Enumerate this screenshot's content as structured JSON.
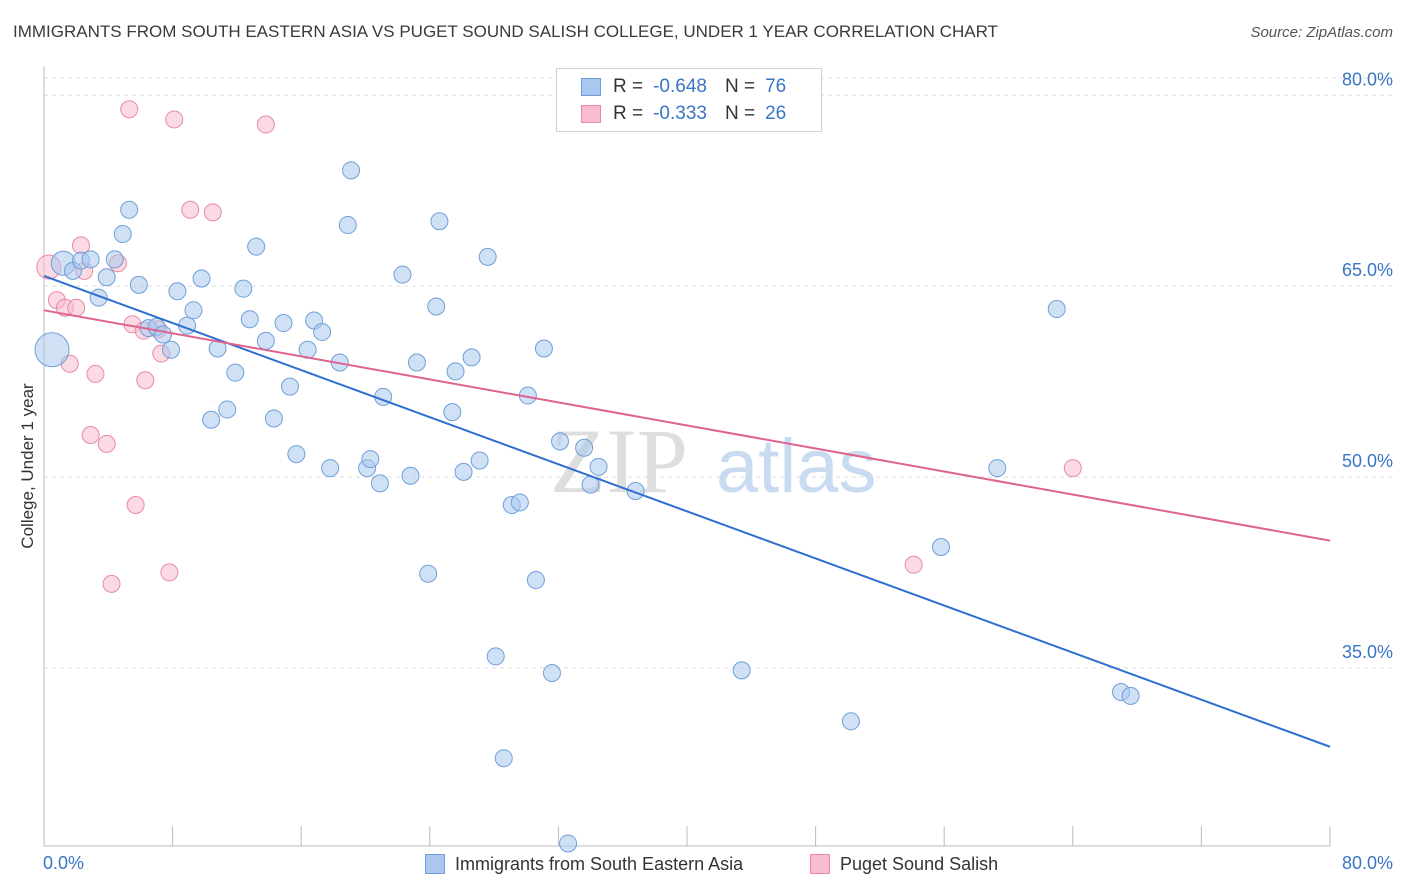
{
  "title": "IMMIGRANTS FROM SOUTH EASTERN ASIA VS PUGET SOUND SALISH COLLEGE, UNDER 1 YEAR CORRELATION CHART",
  "source": "Source: ZipAtlas.com",
  "watermark": {
    "zip": "ZIP",
    "atlas": "atlas"
  },
  "legend": {
    "series1": {
      "r_label": "R =",
      "r_value": "-0.648",
      "n_label": "N =",
      "n_value": "76"
    },
    "series2": {
      "r_label": "R =",
      "r_value": "-0.333",
      "n_label": "N =",
      "n_value": "26"
    }
  },
  "bottom_legend": {
    "series1": "Immigrants from South Eastern Asia",
    "series2": "Puget Sound Salish"
  },
  "colors": {
    "blue_fill": "#aac8ef",
    "blue_stroke": "#6f9fd8",
    "blue_line": "#2e6fd0",
    "pink_fill": "#f7bccd",
    "pink_stroke": "#e88aa7",
    "pink_line": "#e0638e",
    "axis_text": "#3a75c4",
    "grid": "#dddddd"
  },
  "chart_data": {
    "type": "scatter",
    "title": "IMMIGRANTS FROM SOUTH EASTERN ASIA VS PUGET SOUND SALISH COLLEGE, UNDER 1 YEAR CORRELATION CHART",
    "xlabel": "",
    "ylabel": "College, Under 1 year",
    "xlim": [
      0,
      80
    ],
    "ylim": [
      21.0,
      82.3
    ],
    "x_tick_labels": [
      {
        "value": 0,
        "label": "0.0%"
      },
      {
        "value": 80,
        "label": "80.0%"
      }
    ],
    "y_tick_labels": [
      {
        "value": 80,
        "label": "80.0%"
      },
      {
        "value": 65,
        "label": "65.0%"
      },
      {
        "value": 50,
        "label": "50.0%"
      },
      {
        "value": 35,
        "label": "35.0%"
      }
    ],
    "grid": true,
    "legend_position": "top-center",
    "series": [
      {
        "name": "Immigrants from South Eastern Asia",
        "r": -0.648,
        "n": 76,
        "trend": {
          "x": [
            0,
            80
          ],
          "y": [
            65.8,
            28.8
          ]
        },
        "points": [
          {
            "x": 0.5,
            "y": 60.0,
            "s": 3
          },
          {
            "x": 1.2,
            "y": 66.8,
            "s": 2
          },
          {
            "x": 1.8,
            "y": 66.2
          },
          {
            "x": 2.3,
            "y": 67.0
          },
          {
            "x": 2.9,
            "y": 67.1
          },
          {
            "x": 3.4,
            "y": 64.1
          },
          {
            "x": 3.9,
            "y": 65.7
          },
          {
            "x": 4.4,
            "y": 67.1
          },
          {
            "x": 4.9,
            "y": 69.1
          },
          {
            "x": 5.3,
            "y": 71.0
          },
          {
            "x": 5.9,
            "y": 65.1
          },
          {
            "x": 6.5,
            "y": 61.7
          },
          {
            "x": 7.0,
            "y": 61.8
          },
          {
            "x": 7.4,
            "y": 61.2
          },
          {
            "x": 7.9,
            "y": 60.0
          },
          {
            "x": 8.3,
            "y": 64.6
          },
          {
            "x": 8.9,
            "y": 61.9
          },
          {
            "x": 9.3,
            "y": 63.1
          },
          {
            "x": 9.8,
            "y": 65.6
          },
          {
            "x": 10.4,
            "y": 54.5
          },
          {
            "x": 10.8,
            "y": 60.1
          },
          {
            "x": 11.4,
            "y": 55.3
          },
          {
            "x": 11.9,
            "y": 58.2
          },
          {
            "x": 12.4,
            "y": 64.8
          },
          {
            "x": 12.8,
            "y": 62.4
          },
          {
            "x": 13.2,
            "y": 68.1
          },
          {
            "x": 13.8,
            "y": 60.7
          },
          {
            "x": 14.3,
            "y": 54.6
          },
          {
            "x": 14.9,
            "y": 62.1
          },
          {
            "x": 15.3,
            "y": 57.1
          },
          {
            "x": 15.7,
            "y": 51.8
          },
          {
            "x": 16.4,
            "y": 60.0
          },
          {
            "x": 16.8,
            "y": 62.3
          },
          {
            "x": 17.3,
            "y": 61.4
          },
          {
            "x": 17.8,
            "y": 50.7
          },
          {
            "x": 18.4,
            "y": 59.0
          },
          {
            "x": 18.9,
            "y": 69.8
          },
          {
            "x": 19.1,
            "y": 74.1
          },
          {
            "x": 20.1,
            "y": 50.7
          },
          {
            "x": 20.3,
            "y": 51.4
          },
          {
            "x": 20.9,
            "y": 49.5
          },
          {
            "x": 21.1,
            "y": 56.3
          },
          {
            "x": 22.3,
            "y": 65.9
          },
          {
            "x": 22.8,
            "y": 50.1
          },
          {
            "x": 23.2,
            "y": 59.0
          },
          {
            "x": 23.9,
            "y": 42.4
          },
          {
            "x": 24.4,
            "y": 63.4
          },
          {
            "x": 24.6,
            "y": 70.1
          },
          {
            "x": 25.4,
            "y": 55.1
          },
          {
            "x": 25.6,
            "y": 58.3
          },
          {
            "x": 26.1,
            "y": 50.4
          },
          {
            "x": 26.6,
            "y": 59.4
          },
          {
            "x": 27.1,
            "y": 51.3
          },
          {
            "x": 27.6,
            "y": 67.3
          },
          {
            "x": 28.1,
            "y": 35.9
          },
          {
            "x": 28.6,
            "y": 27.9
          },
          {
            "x": 29.1,
            "y": 47.8
          },
          {
            "x": 29.6,
            "y": 48.0
          },
          {
            "x": 30.1,
            "y": 56.4
          },
          {
            "x": 30.6,
            "y": 41.9
          },
          {
            "x": 31.1,
            "y": 60.1
          },
          {
            "x": 31.6,
            "y": 34.6
          },
          {
            "x": 32.1,
            "y": 52.8
          },
          {
            "x": 32.6,
            "y": 21.2
          },
          {
            "x": 33.6,
            "y": 52.3
          },
          {
            "x": 34.0,
            "y": 49.4
          },
          {
            "x": 34.5,
            "y": 50.8
          },
          {
            "x": 36.8,
            "y": 48.9
          },
          {
            "x": 43.4,
            "y": 34.8
          },
          {
            "x": 50.2,
            "y": 30.8
          },
          {
            "x": 55.8,
            "y": 44.5
          },
          {
            "x": 59.3,
            "y": 50.7
          },
          {
            "x": 63.0,
            "y": 63.2
          },
          {
            "x": 67.0,
            "y": 33.1
          },
          {
            "x": 67.6,
            "y": 32.8
          }
        ]
      },
      {
        "name": "Puget Sound Salish",
        "r": -0.333,
        "n": 26,
        "trend": {
          "x": [
            0,
            80
          ],
          "y": [
            63.1,
            45.0
          ]
        },
        "points": [
          {
            "x": 0.3,
            "y": 66.5,
            "s": 2
          },
          {
            "x": 0.8,
            "y": 63.9
          },
          {
            "x": 1.3,
            "y": 63.3
          },
          {
            "x": 1.6,
            "y": 58.9
          },
          {
            "x": 2.0,
            "y": 63.3
          },
          {
            "x": 2.3,
            "y": 68.2
          },
          {
            "x": 2.5,
            "y": 66.2
          },
          {
            "x": 2.9,
            "y": 53.3
          },
          {
            "x": 3.2,
            "y": 58.1
          },
          {
            "x": 3.9,
            "y": 52.6
          },
          {
            "x": 4.2,
            "y": 41.6
          },
          {
            "x": 4.6,
            "y": 66.8
          },
          {
            "x": 5.3,
            "y": 78.9
          },
          {
            "x": 5.5,
            "y": 62.0
          },
          {
            "x": 5.7,
            "y": 47.8
          },
          {
            "x": 6.2,
            "y": 61.5
          },
          {
            "x": 6.3,
            "y": 57.6
          },
          {
            "x": 7.1,
            "y": 61.6
          },
          {
            "x": 7.3,
            "y": 59.7
          },
          {
            "x": 7.8,
            "y": 42.5
          },
          {
            "x": 8.1,
            "y": 78.1
          },
          {
            "x": 9.1,
            "y": 71.0
          },
          {
            "x": 10.5,
            "y": 70.8
          },
          {
            "x": 13.8,
            "y": 77.7
          },
          {
            "x": 54.1,
            "y": 43.1
          },
          {
            "x": 64.0,
            "y": 50.7
          }
        ]
      }
    ]
  }
}
